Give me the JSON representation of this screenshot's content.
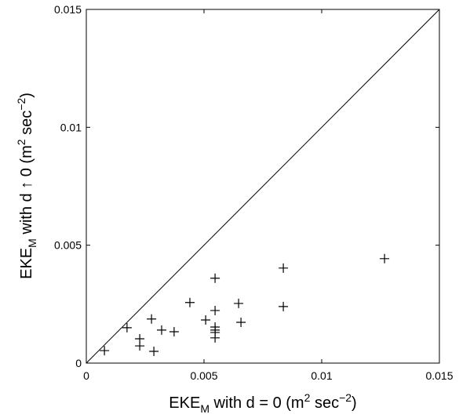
{
  "chart_data": {
    "type": "scatter",
    "xlabel": [
      {
        "text": "EKE"
      },
      {
        "text": "M",
        "sub": true
      },
      {
        "text": " with d = 0 (m"
      },
      {
        "text": "2",
        "sup": true
      },
      {
        "text": " sec"
      },
      {
        "text": "−2",
        "sup": true
      },
      {
        "text": ")"
      }
    ],
    "ylabel": [
      {
        "text": "EKE"
      },
      {
        "text": "M",
        "sub": true
      },
      {
        "text": " with d ↑ 0 (m"
      },
      {
        "text": "2",
        "sup": true
      },
      {
        "text": " sec"
      },
      {
        "text": "−2",
        "sup": true
      },
      {
        "text": ")"
      }
    ],
    "x": [
      0.00077,
      0.00173,
      0.00227,
      0.00227,
      0.00277,
      0.00287,
      0.0032,
      0.00373,
      0.0044,
      0.00507,
      0.00547,
      0.00547,
      0.00547,
      0.00547,
      0.00547,
      0.00547,
      0.00647,
      0.00657,
      0.00837,
      0.00837,
      0.01267
    ],
    "values": [
      0.00053,
      0.0015,
      0.00103,
      0.00073,
      0.00187,
      0.0005,
      0.0014,
      0.00133,
      0.00257,
      0.00183,
      0.0036,
      0.00223,
      0.00153,
      0.0014,
      0.0013,
      0.00107,
      0.00253,
      0.00173,
      0.00403,
      0.0024,
      0.00443
    ],
    "color": "#000000",
    "marker": "+",
    "identity_line": true,
    "xlim": [
      0,
      0.015
    ],
    "xticks": [
      0,
      0.005,
      0.01,
      0.015
    ],
    "ylim": [
      0,
      0.015
    ],
    "yticks": [
      0,
      0.005,
      0.01,
      0.015
    ]
  }
}
